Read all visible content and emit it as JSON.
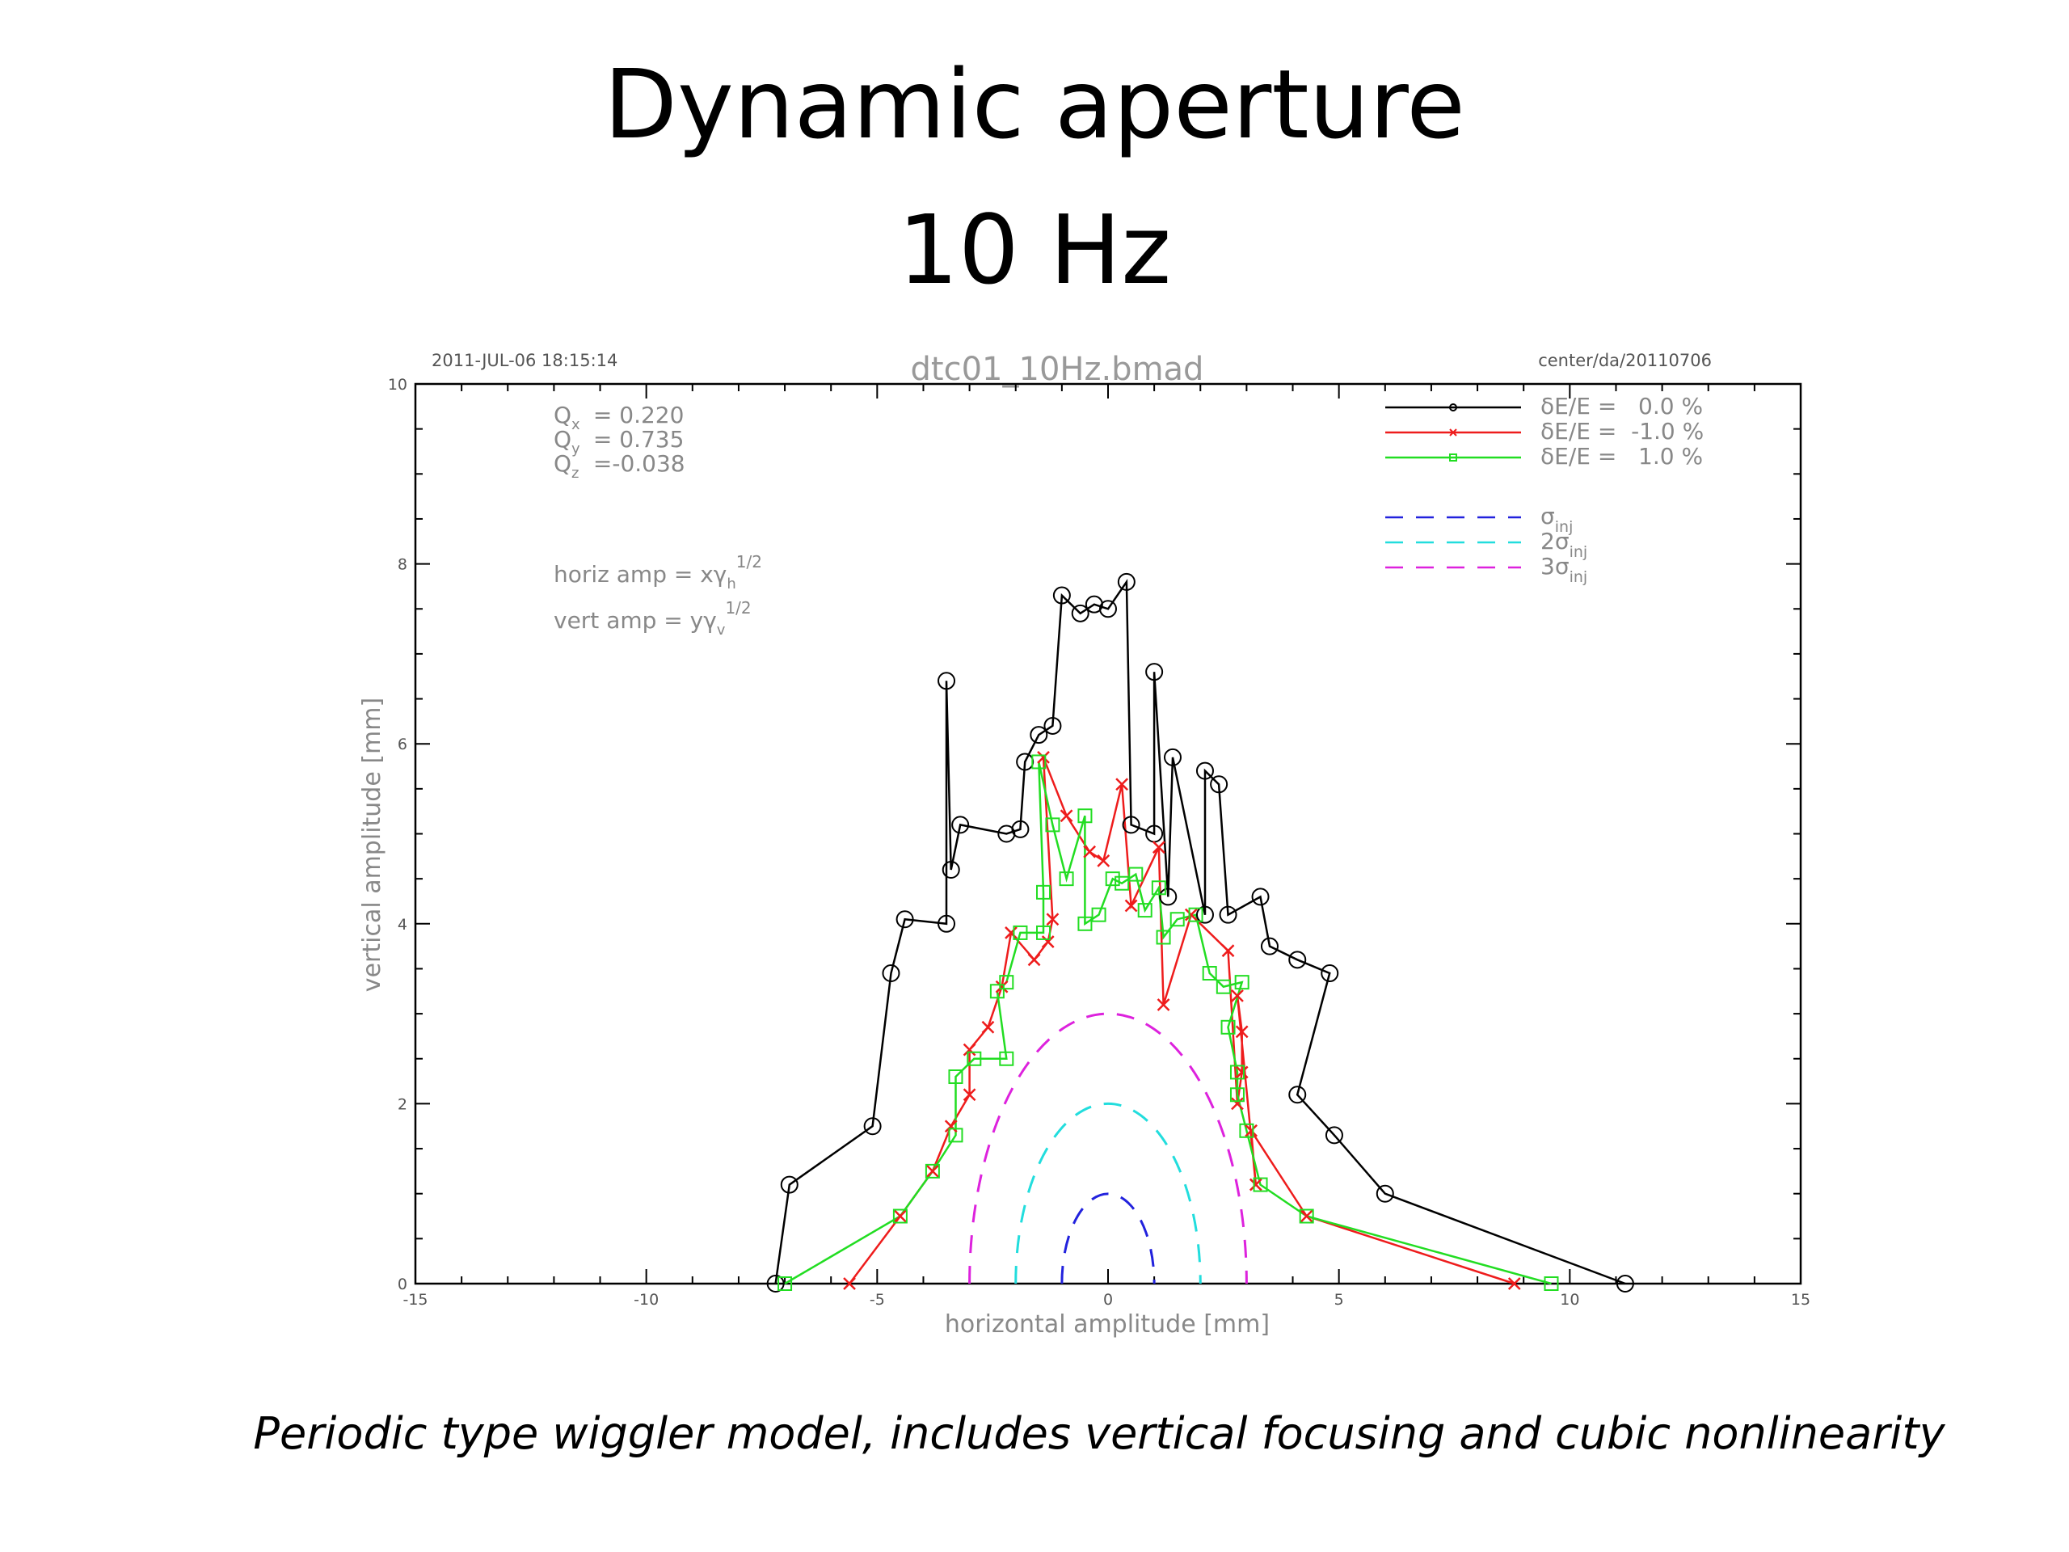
{
  "slide": {
    "title_line1": "Dynamic aperture",
    "title_line2": "10 Hz",
    "caption": "Periodic type wiggler model, includes vertical focusing and cubic nonlinearity"
  },
  "plot_header": {
    "timestamp": "2011-JUL-06 18:15:14",
    "filename": "dtc01_10Hz.bmad",
    "path": "center/da/20110706"
  },
  "tune_block": {
    "qx": {
      "main": "Q",
      "sub": "x",
      "value": " = 0.220"
    },
    "qy": {
      "main": "Q",
      "sub": "y",
      "value": " = 0.735"
    },
    "qz": {
      "main": "Q",
      "sub": "z",
      "value": " =-0.038"
    }
  },
  "amp_defs": {
    "horiz": {
      "prefix": "horiz amp = xγ",
      "sub": "h",
      "sup": "1/2"
    },
    "vert": {
      "prefix": "vert amp = yγ",
      "sub": "v",
      "sup": "1/2"
    }
  },
  "colors": {
    "black": "#000000",
    "red": "#ee1c1c",
    "green": "#22dd22",
    "marker_green": "#22dd22",
    "blue": "#2222dd",
    "cyan": "#22dddd",
    "magenta": "#dd22dd",
    "axis": "#000000",
    "label_grey": "#888888"
  },
  "chart_data": {
    "type": "line",
    "xlabel": "horizontal amplitude [mm]",
    "ylabel": "vertical amplitude [mm]",
    "xlim": [
      -15,
      15
    ],
    "ylim": [
      0,
      10
    ],
    "x_ticks": [
      "-15",
      "-10",
      "-5",
      "0",
      "5",
      "10",
      "15"
    ],
    "y_ticks": [
      "0",
      "2",
      "4",
      "6",
      "8",
      "10"
    ],
    "x_tick_values": [
      -15,
      -10,
      -5,
      0,
      5,
      10,
      15
    ],
    "y_tick_values": [
      0,
      2,
      4,
      6,
      8,
      10
    ],
    "grid": false,
    "legend_position": "top-right",
    "series": [
      {
        "name": "δE/E =   0.0 %",
        "color": "black",
        "marker": "circle",
        "points": [
          [
            -7.2,
            0.0
          ],
          [
            -6.9,
            1.1
          ],
          [
            -5.1,
            1.75
          ],
          [
            -4.7,
            3.45
          ],
          [
            -4.4,
            4.05
          ],
          [
            -3.5,
            4.0
          ],
          [
            -3.5,
            6.7
          ],
          [
            -3.4,
            4.6
          ],
          [
            -3.2,
            5.1
          ],
          [
            -2.2,
            5.0
          ],
          [
            -1.9,
            5.05
          ],
          [
            -1.8,
            5.8
          ],
          [
            -1.5,
            6.1
          ],
          [
            -1.2,
            6.2
          ],
          [
            -1.0,
            7.65
          ],
          [
            -0.6,
            7.45
          ],
          [
            -0.3,
            7.55
          ],
          [
            0.0,
            7.5
          ],
          [
            0.4,
            7.8
          ],
          [
            0.5,
            5.1
          ],
          [
            1.0,
            5.0
          ],
          [
            1.0,
            6.8
          ],
          [
            1.3,
            4.3
          ],
          [
            1.4,
            5.85
          ],
          [
            2.1,
            4.1
          ],
          [
            2.1,
            5.7
          ],
          [
            2.4,
            5.55
          ],
          [
            2.6,
            4.1
          ],
          [
            3.3,
            4.3
          ],
          [
            3.5,
            3.75
          ],
          [
            4.1,
            3.6
          ],
          [
            4.8,
            3.45
          ],
          [
            4.1,
            2.1
          ],
          [
            4.9,
            1.65
          ],
          [
            6.0,
            1.0
          ],
          [
            11.2,
            0.0
          ]
        ]
      },
      {
        "name": "δE/E =  -1.0 %",
        "color": "red",
        "marker": "x",
        "points": [
          [
            -5.6,
            0.0
          ],
          [
            -4.5,
            0.75
          ],
          [
            -3.8,
            1.25
          ],
          [
            -3.4,
            1.75
          ],
          [
            -3.0,
            2.1
          ],
          [
            -3.0,
            2.6
          ],
          [
            -2.6,
            2.85
          ],
          [
            -2.3,
            3.3
          ],
          [
            -2.1,
            3.9
          ],
          [
            -1.6,
            3.6
          ],
          [
            -1.3,
            3.8
          ],
          [
            -1.2,
            4.05
          ],
          [
            -1.4,
            5.85
          ],
          [
            -0.9,
            5.2
          ],
          [
            -0.4,
            4.8
          ],
          [
            -0.1,
            4.7
          ],
          [
            0.3,
            5.55
          ],
          [
            0.5,
            4.2
          ],
          [
            1.1,
            4.85
          ],
          [
            1.2,
            3.1
          ],
          [
            1.8,
            4.1
          ],
          [
            2.6,
            3.7
          ],
          [
            2.8,
            2.0
          ],
          [
            2.9,
            2.35
          ],
          [
            2.9,
            2.8
          ],
          [
            2.8,
            3.2
          ],
          [
            3.2,
            1.1
          ],
          [
            3.1,
            1.7
          ],
          [
            4.3,
            0.75
          ],
          [
            8.8,
            0.0
          ]
        ]
      },
      {
        "name": "δE/E =   1.0 %",
        "color": "green",
        "marker": "square",
        "points": [
          [
            -7.0,
            0.0
          ],
          [
            -4.5,
            0.75
          ],
          [
            -3.8,
            1.25
          ],
          [
            -3.3,
            1.65
          ],
          [
            -3.3,
            2.3
          ],
          [
            -2.9,
            2.5
          ],
          [
            -2.2,
            2.5
          ],
          [
            -2.4,
            3.25
          ],
          [
            -2.2,
            3.35
          ],
          [
            -1.9,
            3.9
          ],
          [
            -1.4,
            3.9
          ],
          [
            -1.4,
            4.35
          ],
          [
            -1.5,
            5.8
          ],
          [
            -1.2,
            5.1
          ],
          [
            -0.9,
            4.5
          ],
          [
            -0.5,
            5.2
          ],
          [
            -0.5,
            4.0
          ],
          [
            -0.2,
            4.1
          ],
          [
            0.1,
            4.5
          ],
          [
            0.3,
            4.45
          ],
          [
            0.6,
            4.55
          ],
          [
            0.8,
            4.15
          ],
          [
            1.1,
            4.4
          ],
          [
            1.2,
            3.85
          ],
          [
            1.5,
            4.05
          ],
          [
            1.9,
            4.1
          ],
          [
            2.2,
            3.45
          ],
          [
            2.5,
            3.3
          ],
          [
            2.9,
            3.35
          ],
          [
            2.6,
            2.85
          ],
          [
            2.8,
            2.35
          ],
          [
            2.8,
            2.1
          ],
          [
            3.0,
            1.7
          ],
          [
            3.3,
            1.1
          ],
          [
            4.3,
            0.75
          ],
          [
            9.6,
            0.0
          ]
        ]
      },
      {
        "name": "σ_inj",
        "color": "blue",
        "dash": true,
        "radius": 1.0
      },
      {
        "name": "2σ_inj",
        "color": "cyan",
        "dash": true,
        "radius": 2.0,
        "yradius": 2.0
      },
      {
        "name": "3σ_inj",
        "color": "magenta",
        "dash": true,
        "radius": 3.0,
        "yradius": 3.0
      }
    ],
    "legend": [
      {
        "main": "δE/E =   0.0 %"
      },
      {
        "main": "δE/E =  -1.0 %"
      },
      {
        "main": "δE/E =   1.0 %"
      },
      {
        "main": "σ",
        "sub": "inj"
      },
      {
        "main": "2σ",
        "sub": "inj"
      },
      {
        "main": "3σ",
        "sub": "inj"
      }
    ]
  }
}
